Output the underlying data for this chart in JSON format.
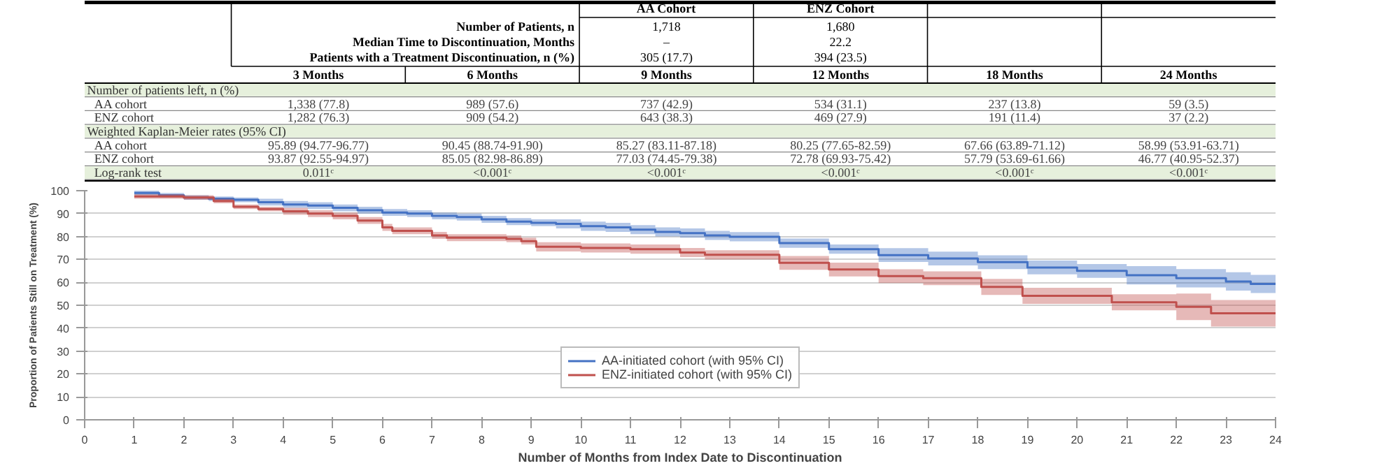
{
  "chart_data": [
    {
      "type": "other",
      "annotations": [
        "Number of Patients, n",
        "Median Time to Discontinuation, Months",
        "Patients with a Treatment Discontinuation, n (%)"
      ],
      "categories": [
        "3 Months",
        "6 Months",
        "9 Months",
        "12 Months",
        "18 Months",
        "24 Months"
      ],
      "y_categories": [
        null,
        null,
        null,
        null,
        "Number of patients left, n (%)",
        "AA cohort",
        "ENZ cohort",
        "Weighted Kaplan-Meier rates (95% CI)",
        "AA cohort",
        "ENZ cohort",
        "Log-rank test"
      ],
      "cell_labels": [
        [
          null,
          null,
          "AA Cohort",
          "ENZ Cohort",
          null,
          null
        ],
        [
          null,
          null,
          "1,718",
          "1,680",
          null,
          null
        ],
        [
          null,
          null,
          "–",
          "22.2",
          null,
          null
        ],
        [
          null,
          null,
          "305 (17.7)",
          "394 (23.5)",
          null,
          null
        ],
        [
          null,
          null,
          null,
          null,
          null,
          null
        ],
        [
          "1,338 (77.8)",
          "989 (57.6)",
          "737 (42.9)",
          "534 (31.1)",
          "237 (13.8)",
          "59 (3.5)"
        ],
        [
          "1,282 (76.3)",
          "909 (54.2)",
          "643 (38.3)",
          "469 (27.9)",
          "191 (11.4)",
          "37 (2.2)"
        ],
        [
          null,
          null,
          null,
          null,
          null,
          null
        ],
        [
          "95.89 (94.77-96.77)",
          "90.45 (88.74-91.90)",
          "85.27 (83.11-87.18)",
          "80.25 (77.65-82.59)",
          "67.66 (63.89-71.12)",
          "58.99 (53.91-63.71)"
        ],
        [
          "93.87 (92.55-94.97)",
          "85.05 (82.98-86.89)",
          "77.03 (74.45-79.38)",
          "72.78 (69.93-75.42)",
          "57.79 (53.69-61.66)",
          "46.77 (40.95-52.37)"
        ],
        [
          "0.011ᶜ",
          "<0.001ᶜ",
          "<0.001ᶜ",
          "<0.001ᶜ",
          "<0.001ᶜ",
          "<0.001ᶜ"
        ]
      ]
    },
    {
      "type": "step",
      "xlabel": "Number of Months from Index Date to Discontinuation",
      "ylabel": "Proportion of Patients Still on Treatment (%)",
      "xlim": [
        0,
        24
      ],
      "xticks": [
        0,
        1,
        2,
        3,
        4,
        5,
        6,
        7,
        8,
        9,
        10,
        11,
        12,
        13,
        14,
        15,
        16,
        17,
        18,
        19,
        20,
        21,
        22,
        23,
        24
      ],
      "ylim": [
        0,
        100
      ],
      "yticks": [
        0,
        10,
        20,
        30,
        40,
        50,
        60,
        70,
        80,
        90,
        100
      ],
      "grid": "y",
      "legend": "bottom",
      "series": [
        {
          "name": "AA-initiated cohort (with 95% CI)",
          "color": "#4472c4",
          "x": [
            1,
            1.5,
            2,
            2.5,
            3,
            3.5,
            4,
            4.5,
            5,
            5.5,
            6,
            6.5,
            7,
            7.5,
            8,
            8.5,
            9,
            9.5,
            10,
            10.5,
            11,
            11.5,
            12,
            12.5,
            13,
            14,
            15,
            16,
            17,
            18,
            19,
            20,
            21,
            22,
            23,
            23.5,
            24
          ],
          "values": [
            99,
            98,
            97,
            96.5,
            96,
            95,
            94,
            93.5,
            92.5,
            91.5,
            90.5,
            90,
            89,
            88.5,
            87.5,
            86.5,
            86,
            85.5,
            84.5,
            84,
            83,
            82,
            81.5,
            80.5,
            79.9,
            77.1,
            74.5,
            71.9,
            70.4,
            68.8,
            66.5,
            65,
            63.1,
            61.8,
            60.4,
            59.3,
            58.9
          ],
          "lower": [
            98,
            97,
            96,
            95.5,
            95,
            93.5,
            92.5,
            92,
            91,
            90,
            89,
            88.5,
            87.5,
            87,
            86,
            85,
            84.5,
            83.5,
            82.5,
            82,
            81,
            80,
            79.5,
            78.5,
            77.9,
            75.1,
            72.5,
            68.9,
            67.4,
            65.8,
            63.5,
            62,
            59.1,
            57.8,
            56.4,
            55.3,
            54.9
          ],
          "upper": [
            100,
            99,
            98,
            97.5,
            97,
            96.5,
            95.5,
            95,
            94,
            93,
            92,
            91.5,
            90.5,
            90,
            89,
            88,
            87.5,
            87.5,
            86.5,
            86,
            85,
            84,
            83.5,
            82.5,
            81.9,
            79.1,
            76.5,
            74.9,
            73.4,
            71.8,
            69.5,
            68,
            67.1,
            65.8,
            64.4,
            63.3,
            62.9
          ]
        },
        {
          "name": "ENZ-initiated cohort (with 95% CI)",
          "color": "#c0504d",
          "x": [
            1,
            2,
            2.6,
            3,
            3.5,
            4,
            4.5,
            5,
            5.5,
            6,
            6.2,
            7,
            7.3,
            8.5,
            8.8,
            9.1,
            10,
            11,
            12,
            12.5,
            13.5,
            14,
            15,
            16,
            16.9,
            18.07,
            18.9,
            20.7,
            22,
            22.7,
            24
          ],
          "values": [
            97.5,
            97,
            95.5,
            93,
            92,
            91,
            90,
            89,
            87,
            84,
            82.5,
            80.5,
            79.5,
            79,
            78,
            75.5,
            75,
            74.5,
            73,
            72,
            72,
            68.5,
            65.6,
            62.7,
            61.8,
            58,
            54.1,
            51.3,
            49.3,
            46.5,
            46.5
          ],
          "lower": [
            96.5,
            96,
            94.5,
            92,
            91,
            89.5,
            88.5,
            87.5,
            85.5,
            82.5,
            81,
            79,
            78,
            77.5,
            76.5,
            73.5,
            73,
            72.5,
            71,
            70,
            70,
            65.5,
            62.6,
            59.7,
            58.8,
            54.5,
            50.6,
            47.8,
            43.5,
            40.7,
            40.7
          ],
          "upper": [
            98.5,
            98,
            96.5,
            94,
            93,
            92.5,
            91.5,
            90.5,
            88.5,
            85.5,
            84,
            82,
            81,
            80.5,
            79.5,
            77.5,
            77,
            76.5,
            75,
            74,
            74,
            71.5,
            68.6,
            65.7,
            64.8,
            61.5,
            57.6,
            54.8,
            55.1,
            52.3,
            52.3
          ]
        }
      ]
    }
  ]
}
